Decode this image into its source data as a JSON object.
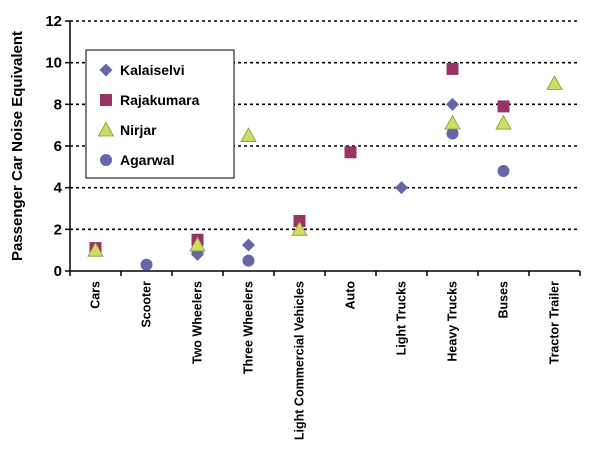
{
  "chart_data": {
    "type": "scatter",
    "title": "",
    "xlabel": "",
    "ylabel": "Passenger Car Noise Equivalent",
    "ylim": [
      0,
      12
    ],
    "yticks": [
      0,
      2,
      4,
      6,
      8,
      10,
      12
    ],
    "grid": "horizontal dotted",
    "legend_position": "top-left",
    "categories": [
      "Cars",
      "Scooter",
      "Two Wheelers",
      "Three Wheelers",
      "Light Commercial Vehicles",
      "Auto",
      "Light Trucks",
      "Heavy Trucks",
      "Buses",
      "Tractor Trailer"
    ],
    "series": [
      {
        "name": "Kalaiselvi",
        "marker": "diamond",
        "color": "#6666aa",
        "values": [
          1.0,
          null,
          0.8,
          1.25,
          null,
          null,
          4.0,
          8.0,
          null,
          null
        ]
      },
      {
        "name": "Rajakumara",
        "marker": "square",
        "color": "#993366",
        "values": [
          1.1,
          null,
          1.5,
          null,
          2.4,
          5.7,
          null,
          9.7,
          7.9,
          null
        ]
      },
      {
        "name": "Nirjar",
        "marker": "triangle",
        "color": "#ccdd66",
        "values": [
          1.0,
          null,
          1.25,
          6.5,
          2.0,
          null,
          null,
          7.1,
          7.1,
          9.0
        ]
      },
      {
        "name": "Agarwal",
        "marker": "circle",
        "color": "#6666aa",
        "values": [
          null,
          0.3,
          0.9,
          0.5,
          null,
          null,
          null,
          6.6,
          4.8,
          null
        ]
      }
    ]
  }
}
